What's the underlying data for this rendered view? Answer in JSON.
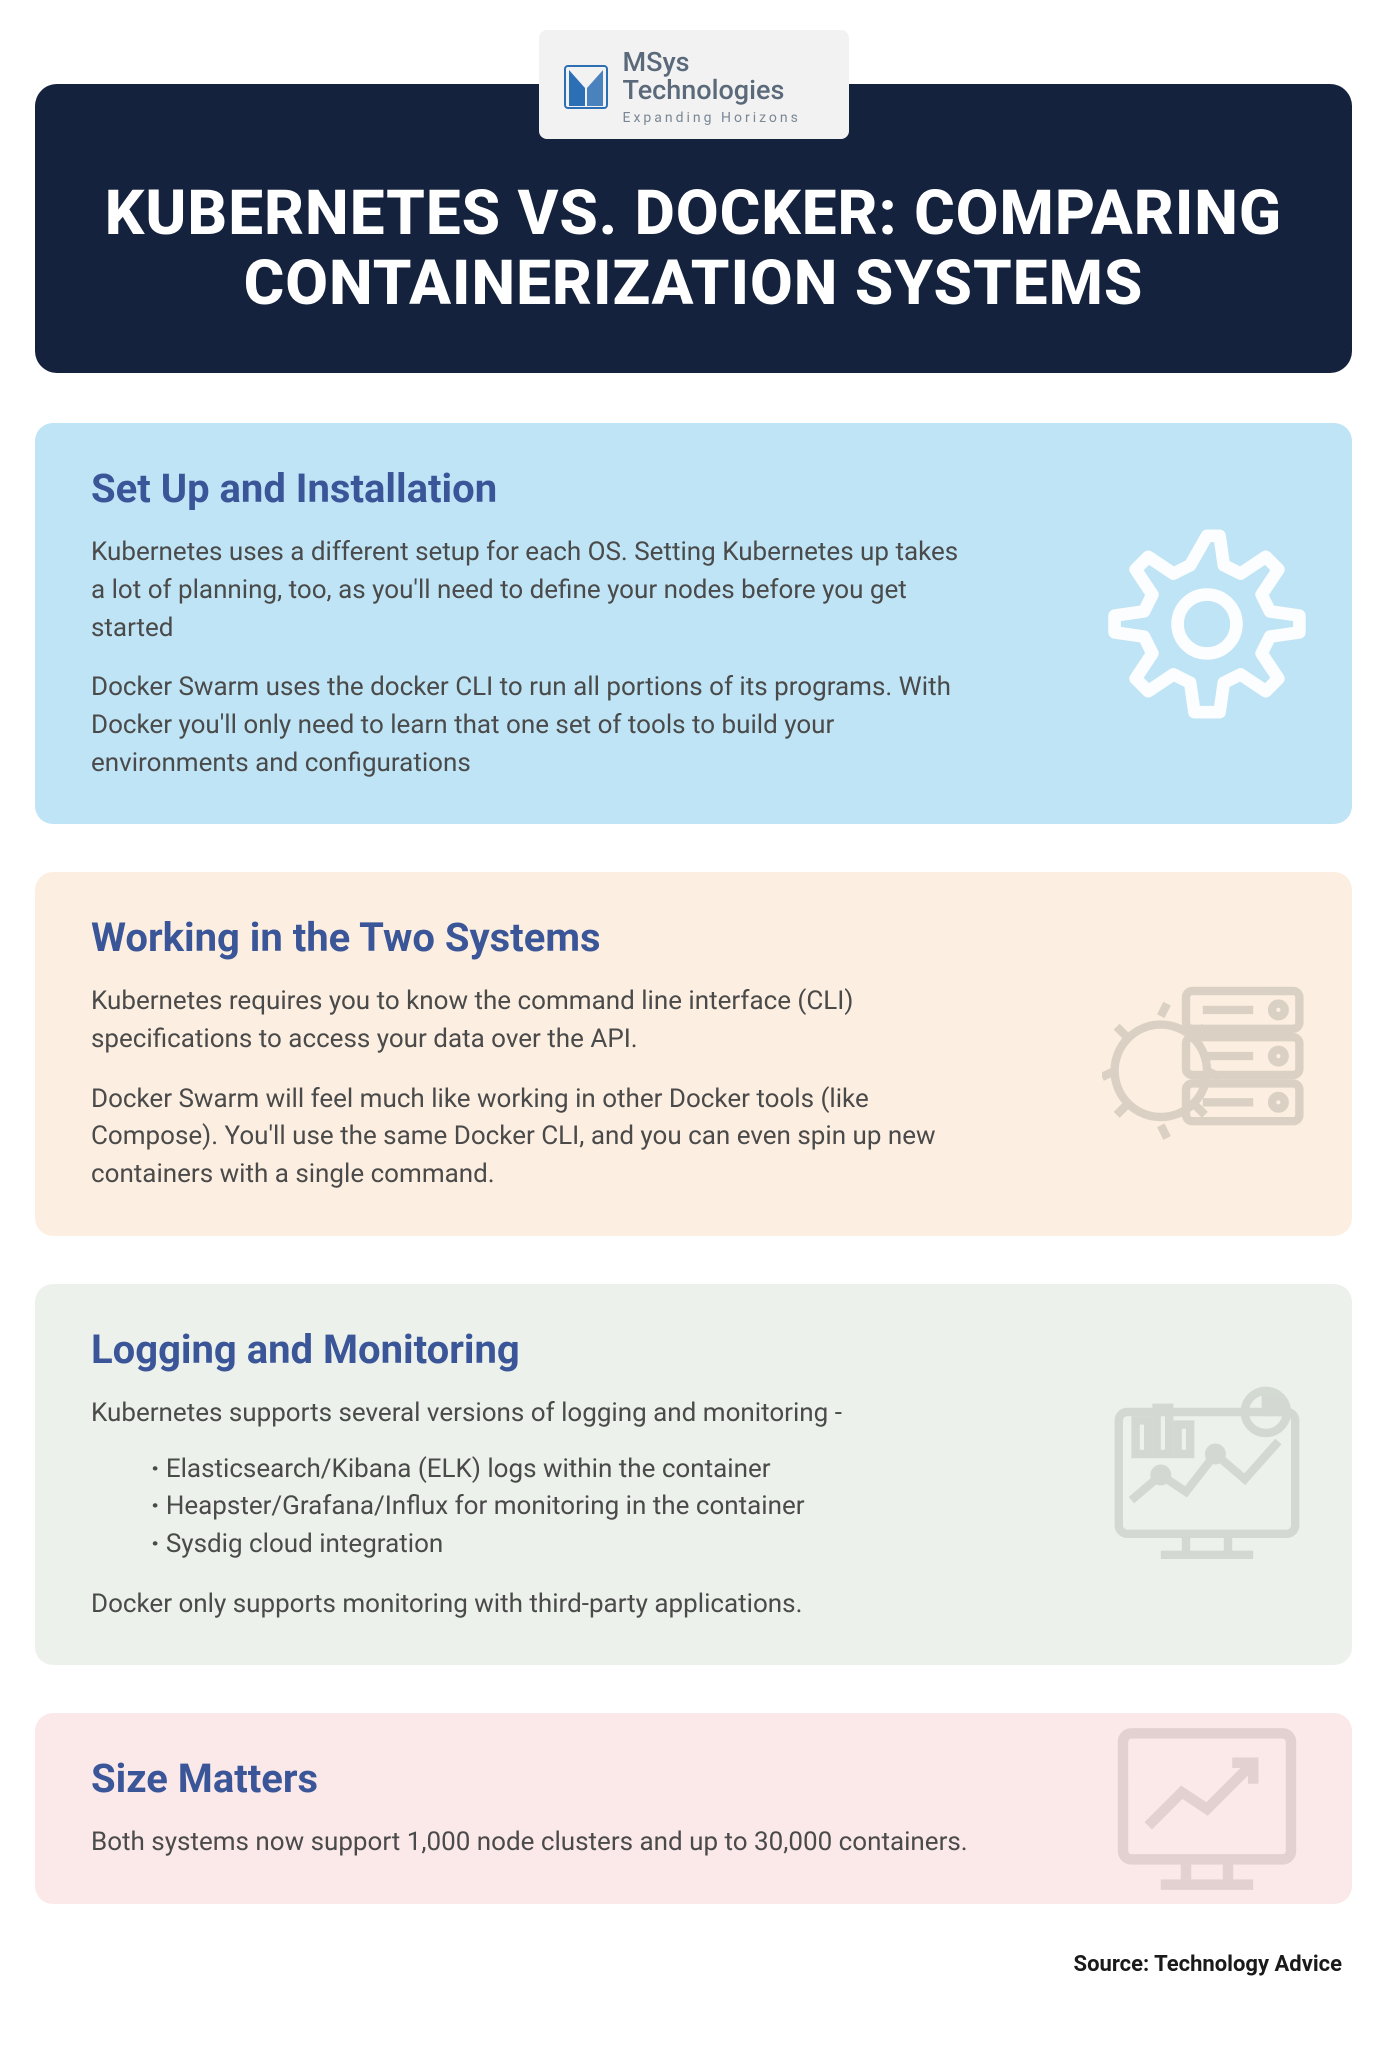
{
  "colors": {
    "title_bg": "#14223d",
    "title_text": "#ffffff",
    "heading_text": "#3a5698",
    "body_text": "#4a4a4a",
    "logo_bg": "#f2f2f2",
    "logo_text": "#5a6a7a",
    "logo_accent": "#2d6fb5"
  },
  "logo": {
    "line1": "MSys",
    "line2": "Technologies",
    "tagline": "Expanding Horizons",
    "accent_color": "#2d6fb5"
  },
  "title": "KUBERNETES VS. DOCKER: COMPARING CONTAINERIZATION SYSTEMS",
  "sections": [
    {
      "heading": "Set Up and Installation",
      "bg_color": "#bfe4f5",
      "icon": "gear",
      "icon_color": "#ffffff",
      "paragraphs": [
        "Kubernetes uses a different setup for each OS. Setting Kubernetes up takes a lot of planning, too, as you'll need to define your nodes before you get started",
        "Docker Swarm uses the docker CLI to run all portions of its programs. With Docker you'll only need to learn that one set of tools to build your environments and configurations"
      ]
    },
    {
      "heading": "Working in the Two Systems",
      "bg_color": "#fcefe1",
      "icon": "server-gear",
      "icon_color": "#d9cfc3",
      "paragraphs": [
        "Kubernetes requires you to know the command line interface (CLI) specifications to access your data over the API.",
        "Docker Swarm will feel much like working in other Docker tools (like Compose). You'll use the same Docker CLI, and you can even spin up new containers with a single command."
      ]
    },
    {
      "heading": "Logging and Monitoring",
      "bg_color": "#ecf1eb",
      "icon": "dashboard",
      "icon_color": "#d2d8d1",
      "paragraphs": [
        "Kubernetes supports several versions of logging and monitoring -"
      ],
      "bullets": [
        "Elasticsearch/Kibana (ELK) logs within the container",
        "Heapster/Grafana/Influx for monitoring in the container",
        "Sysdig cloud integration"
      ],
      "paragraphs_after": [
        "Docker only supports monitoring with third-party applications."
      ]
    },
    {
      "heading": "Size Matters",
      "bg_color": "#fbe9ea",
      "icon": "trend-monitor",
      "icon_color": "#e2d0d1",
      "paragraphs": [
        "Both systems now support 1,000 node clusters and up to 30,000 containers."
      ]
    }
  ],
  "source_label": "Source: Technology Advice"
}
